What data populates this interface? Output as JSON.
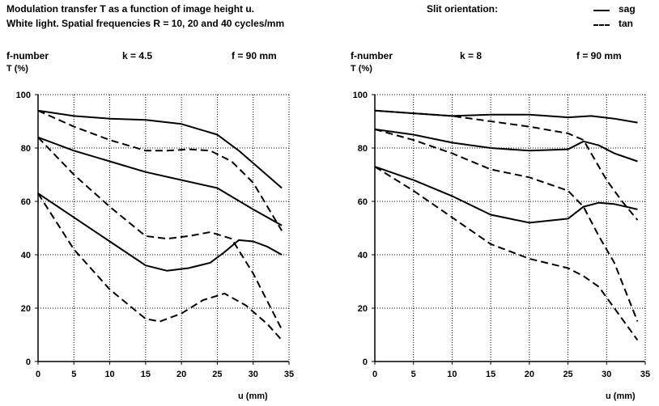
{
  "header": {
    "line1": "Modulation transfer T as a function of image height u.",
    "line2": "White light. Spatial frequencies R = 10, 20 and 40 cycles/mm",
    "slit_label": "Slit orientation:",
    "legend_sag": "sag",
    "legend_tan": "tan"
  },
  "chart_data": [
    {
      "type": "line",
      "fnumber_label": "f-number",
      "k_label": "k = 4.5",
      "f_label": "f = 90 mm",
      "ylabel": "T (%)",
      "xlabel": "u (mm)",
      "xlim": [
        0,
        35
      ],
      "ylim": [
        0,
        100
      ],
      "xticks": [
        0,
        5,
        10,
        15,
        20,
        25,
        30,
        35
      ],
      "yticks": [
        0,
        20,
        40,
        60,
        80,
        100
      ],
      "grid": true,
      "series": [
        {
          "name": "sag",
          "style": "solid",
          "points": [
            [
              0,
              94
            ],
            [
              5,
              92
            ],
            [
              10,
              91
            ],
            [
              15,
              90.5
            ],
            [
              20,
              89
            ],
            [
              25,
              85
            ],
            [
              28,
              79
            ],
            [
              31,
              72
            ],
            [
              34,
              65
            ]
          ]
        },
        {
          "name": "tan",
          "style": "dashed",
          "points": [
            [
              0,
              94
            ],
            [
              5,
              88
            ],
            [
              10,
              83
            ],
            [
              15,
              79
            ],
            [
              18,
              79
            ],
            [
              21,
              79.5
            ],
            [
              24,
              79
            ],
            [
              27,
              75
            ],
            [
              30,
              67
            ],
            [
              34,
              49
            ]
          ]
        },
        {
          "name": "sag",
          "style": "solid",
          "points": [
            [
              0,
              84
            ],
            [
              5,
              79
            ],
            [
              10,
              75
            ],
            [
              15,
              71
            ],
            [
              20,
              68
            ],
            [
              25,
              65
            ],
            [
              30,
              57
            ],
            [
              34,
              51
            ]
          ]
        },
        {
          "name": "tan",
          "style": "dashed",
          "points": [
            [
              0,
              84
            ],
            [
              5,
              70
            ],
            [
              10,
              58
            ],
            [
              15,
              47
            ],
            [
              18,
              46
            ],
            [
              21,
              47
            ],
            [
              24,
              48.5
            ],
            [
              27,
              46
            ],
            [
              30,
              33
            ],
            [
              34,
              12
            ]
          ]
        },
        {
          "name": "sag",
          "style": "solid",
          "points": [
            [
              0,
              63
            ],
            [
              5,
              54
            ],
            [
              10,
              45
            ],
            [
              15,
              36
            ],
            [
              18,
              34
            ],
            [
              21,
              35
            ],
            [
              24,
              37
            ],
            [
              26,
              41
            ],
            [
              28,
              45.5
            ],
            [
              30,
              45
            ],
            [
              32,
              43
            ],
            [
              34,
              40
            ]
          ]
        },
        {
          "name": "tan",
          "style": "dashed",
          "points": [
            [
              0,
              63
            ],
            [
              5,
              42
            ],
            [
              10,
              27
            ],
            [
              15,
              16
            ],
            [
              17,
              15
            ],
            [
              20,
              18
            ],
            [
              23,
              23
            ],
            [
              26,
              25.5
            ],
            [
              29,
              21
            ],
            [
              32,
              14
            ],
            [
              34,
              8
            ]
          ]
        }
      ]
    },
    {
      "type": "line",
      "fnumber_label": "f-number",
      "k_label": "k = 8",
      "f_label": "f = 90 mm",
      "ylabel": "T (%)",
      "xlabel": "u (mm)",
      "xlim": [
        0,
        35
      ],
      "ylim": [
        0,
        100
      ],
      "xticks": [
        0,
        5,
        10,
        15,
        20,
        25,
        30,
        35
      ],
      "yticks": [
        0,
        20,
        40,
        60,
        80,
        100
      ],
      "grid": true,
      "series": [
        {
          "name": "sag",
          "style": "solid",
          "points": [
            [
              0,
              94
            ],
            [
              5,
              93
            ],
            [
              10,
              92
            ],
            [
              15,
              92.5
            ],
            [
              20,
              92.5
            ],
            [
              25,
              91.5
            ],
            [
              28,
              92
            ],
            [
              31,
              91
            ],
            [
              34,
              89.5
            ]
          ]
        },
        {
          "name": "tan",
          "style": "dashed",
          "points": [
            [
              0,
              94
            ],
            [
              5,
              93
            ],
            [
              10,
              92
            ],
            [
              15,
              90
            ],
            [
              20,
              88
            ],
            [
              25,
              85.5
            ],
            [
              27,
              83
            ],
            [
              30,
              68
            ],
            [
              32,
              60
            ],
            [
              34,
              53
            ]
          ]
        },
        {
          "name": "sag",
          "style": "solid",
          "points": [
            [
              0,
              87
            ],
            [
              5,
              85
            ],
            [
              10,
              82
            ],
            [
              15,
              80
            ],
            [
              20,
              79
            ],
            [
              25,
              79.5
            ],
            [
              27,
              82.5
            ],
            [
              29,
              81
            ],
            [
              31,
              78
            ],
            [
              34,
              75
            ]
          ]
        },
        {
          "name": "tan",
          "style": "dashed",
          "points": [
            [
              0,
              87
            ],
            [
              5,
              83
            ],
            [
              10,
              78
            ],
            [
              15,
              72
            ],
            [
              20,
              69
            ],
            [
              25,
              64
            ],
            [
              27,
              58
            ],
            [
              29,
              47
            ],
            [
              31,
              37
            ],
            [
              34,
              15
            ]
          ]
        },
        {
          "name": "sag",
          "style": "solid",
          "points": [
            [
              0,
              73
            ],
            [
              5,
              68
            ],
            [
              10,
              62
            ],
            [
              15,
              55
            ],
            [
              20,
              52
            ],
            [
              25,
              53.5
            ],
            [
              27,
              58
            ],
            [
              29,
              59.5
            ],
            [
              31,
              59
            ],
            [
              34,
              57
            ]
          ]
        },
        {
          "name": "tan",
          "style": "dashed",
          "points": [
            [
              0,
              73
            ],
            [
              5,
              64
            ],
            [
              10,
              54
            ],
            [
              15,
              44
            ],
            [
              20,
              38.5
            ],
            [
              25,
              35
            ],
            [
              27,
              32
            ],
            [
              29,
              28
            ],
            [
              31,
              20
            ],
            [
              34,
              8
            ]
          ]
        }
      ]
    }
  ]
}
